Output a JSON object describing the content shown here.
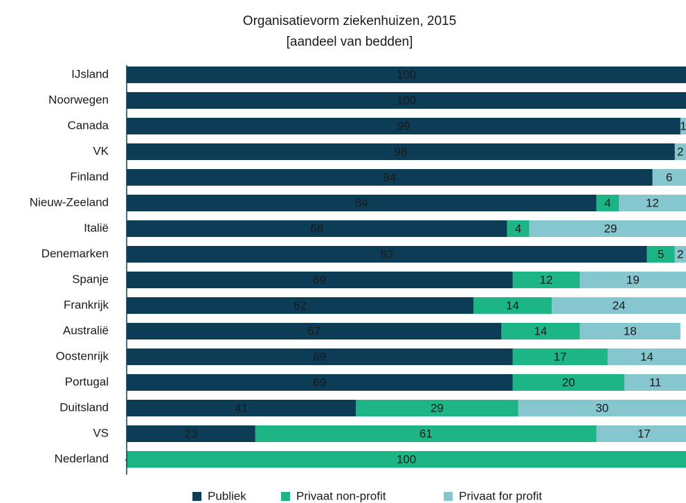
{
  "chart_data": {
    "type": "stacked-bar-horizontal",
    "title": "Organisatievorm ziekenhuizen, 2015",
    "subtitle": "[aandeel van bedden]",
    "categories": [
      "IJsland",
      "Noorwegen",
      "Canada",
      "VK",
      "Finland",
      "Nieuw-Zeeland",
      "Italië",
      "Denemarken",
      "Spanje",
      "Frankrijk",
      "Australië",
      "Oostenrijk",
      "Portugal",
      "Duitsland",
      "VS",
      "Nederland"
    ],
    "xlim": [
      0,
      100
    ],
    "series": [
      {
        "name": "Publiek",
        "color": "#0d3d56",
        "values": [
          100,
          100,
          99,
          98,
          94,
          84,
          68,
          93,
          69,
          62,
          67,
          69,
          69,
          41,
          23,
          0
        ],
        "value_labels": [
          "100",
          "100",
          "99",
          "98",
          "94",
          "84",
          "68",
          "93",
          "69",
          "62",
          "67",
          "69",
          "69",
          "41",
          "23",
          "-"
        ]
      },
      {
        "name": "Privaat non-profit",
        "color": "#1db486",
        "values": [
          0,
          0,
          0,
          0,
          0,
          4,
          4,
          5,
          12,
          14,
          14,
          17,
          20,
          29,
          61,
          100
        ],
        "value_labels": [
          null,
          null,
          null,
          "-",
          "-",
          "4",
          "4",
          "5",
          "12",
          "14",
          "14",
          "17",
          "20",
          "29",
          "61",
          "100"
        ]
      },
      {
        "name": "Privaat for profit",
        "color": "#86c6cf",
        "values": [
          0,
          0,
          1,
          2,
          6,
          12,
          29,
          2,
          19,
          24,
          18,
          14,
          11,
          30,
          17,
          0
        ],
        "value_labels": [
          null,
          null,
          "1",
          "2",
          "6",
          "12",
          "29",
          "2",
          "19",
          "24",
          "18",
          "14",
          "11",
          "30",
          "17",
          null
        ]
      }
    ]
  }
}
